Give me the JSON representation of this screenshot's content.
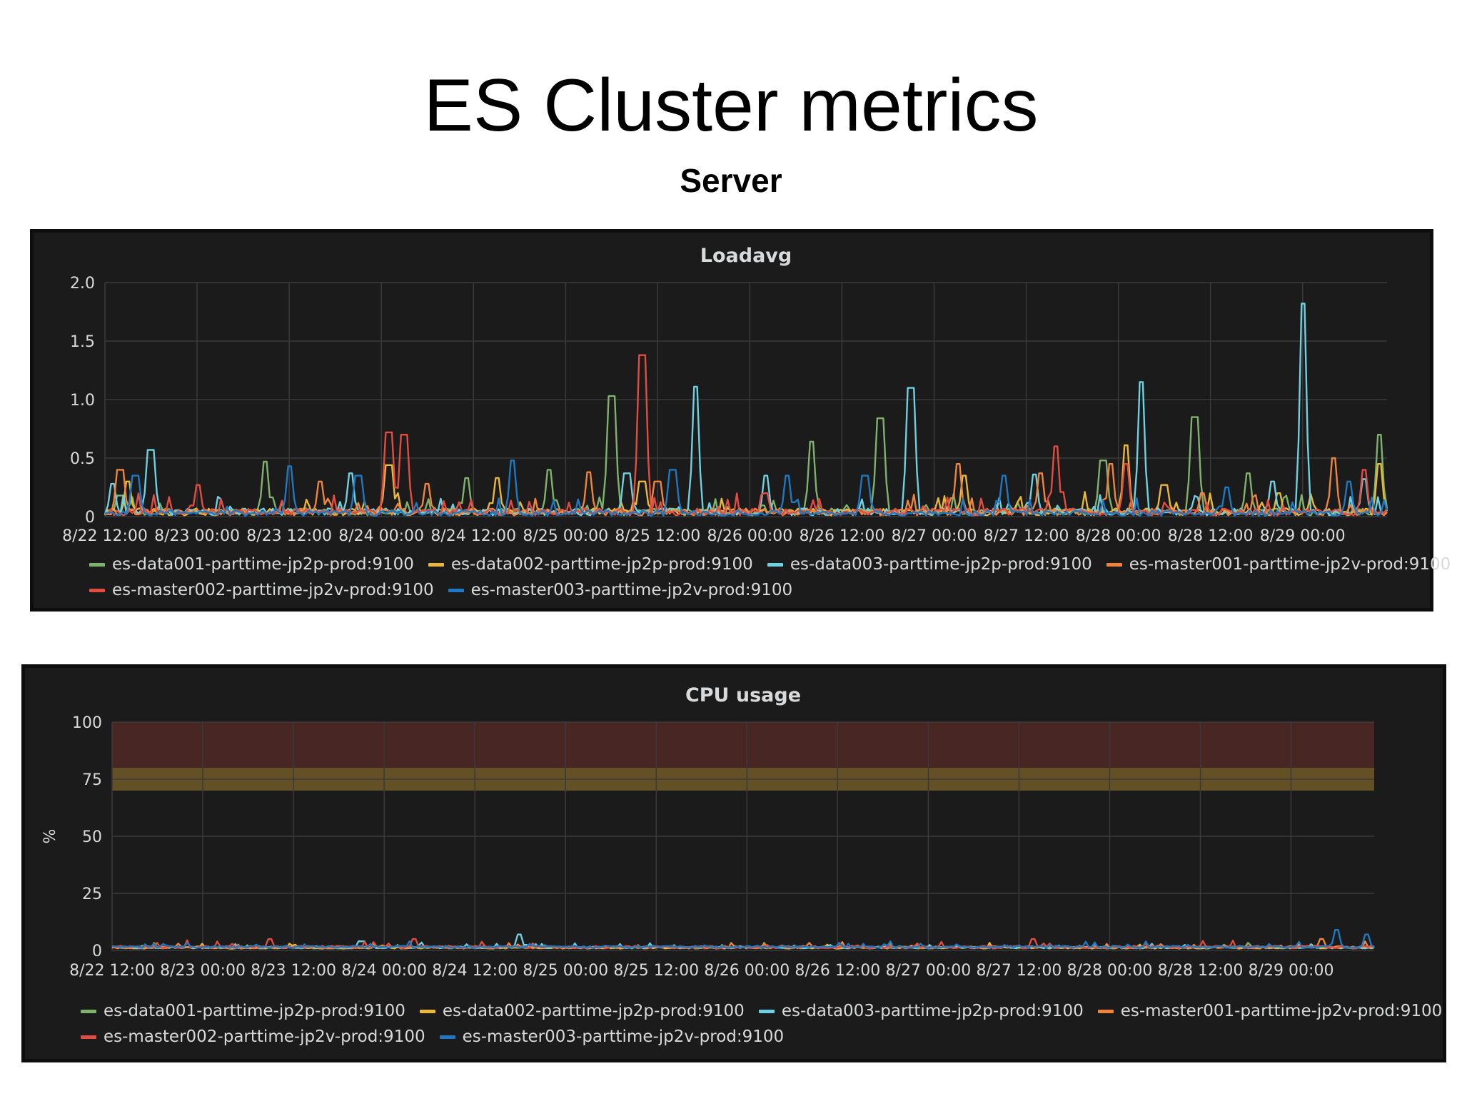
{
  "slide": {
    "title": "ES Cluster metrics",
    "subtitle": "Server"
  },
  "legend": [
    {
      "name": "es-data001-parttime-jp2p-prod:9100",
      "color": "#7eb26d"
    },
    {
      "name": "es-data002-parttime-jp2p-prod:9100",
      "color": "#eab839"
    },
    {
      "name": "es-data003-parttime-jp2p-prod:9100",
      "color": "#6ed0e0"
    },
    {
      "name": "es-master001-parttime-jp2v-prod:9100",
      "color": "#ef843c"
    },
    {
      "name": "es-master002-parttime-jp2v-prod:9100",
      "color": "#e24d42"
    },
    {
      "name": "es-master003-parttime-jp2v-prod:9100",
      "color": "#1f78c1"
    }
  ],
  "chart_data": [
    {
      "type": "line",
      "title": "Loadavg",
      "ylabel": "",
      "ylim": [
        0,
        2.0
      ],
      "yticks": [
        "0",
        "0.5",
        "1.0",
        "1.5",
        "2.0"
      ],
      "x_tick_labels": [
        "8/22 12:00",
        "8/23 00:00",
        "8/23 12:00",
        "8/24 00:00",
        "8/24 12:00",
        "8/25 00:00",
        "8/25 12:00",
        "8/26 00:00",
        "8/26 12:00",
        "8/27 00:00",
        "8/27 12:00",
        "8/28 00:00",
        "8/28 12:00",
        "8/29 00:00"
      ],
      "x_range_hours": [
        0,
        167
      ],
      "grid": true,
      "legend_position": "bottom",
      "series": [
        {
          "name": "es-data001-parttime-jp2p-prod:9100",
          "color": "#7eb26d",
          "baseline": 0.04,
          "noise": 0.06,
          "spikes": [
            [
              2,
              0.18
            ],
            [
              21,
              0.47
            ],
            [
              47,
              0.33
            ],
            [
              58,
              0.4
            ],
            [
              66,
              1.03
            ],
            [
              92,
              0.64
            ],
            [
              101,
              0.84
            ],
            [
              130,
              0.48
            ],
            [
              142,
              0.85
            ],
            [
              149,
              0.37
            ],
            [
              166,
              0.7
            ]
          ]
        },
        {
          "name": "es-data002-parttime-jp2p-prod:9100",
          "color": "#eab839",
          "baseline": 0.04,
          "noise": 0.06,
          "spikes": [
            [
              3,
              0.3
            ],
            [
              37,
              0.44
            ],
            [
              51,
              0.33
            ],
            [
              70,
              0.3
            ],
            [
              112,
              0.35
            ],
            [
              133,
              0.61
            ],
            [
              138,
              0.27
            ],
            [
              153,
              0.2
            ],
            [
              166,
              0.45
            ]
          ]
        },
        {
          "name": "es-data003-parttime-jp2p-prod:9100",
          "color": "#6ed0e0",
          "baseline": 0.04,
          "noise": 0.06,
          "spikes": [
            [
              1,
              0.28
            ],
            [
              6,
              0.57
            ],
            [
              32,
              0.37
            ],
            [
              68,
              0.37
            ],
            [
              77,
              1.11
            ],
            [
              86,
              0.35
            ],
            [
              105,
              1.1
            ],
            [
              121,
              0.36
            ],
            [
              135,
              1.15
            ],
            [
              152,
              0.3
            ],
            [
              156,
              1.82
            ],
            [
              164,
              0.32
            ]
          ]
        },
        {
          "name": "es-master001-parttime-jp2v-prod:9100",
          "color": "#ef843c",
          "baseline": 0.04,
          "noise": 0.06,
          "spikes": [
            [
              2,
              0.4
            ],
            [
              28,
              0.3
            ],
            [
              42,
              0.28
            ],
            [
              63,
              0.38
            ],
            [
              72,
              0.3
            ],
            [
              111,
              0.45
            ],
            [
              122,
              0.37
            ],
            [
              131,
              0.45
            ],
            [
              143,
              0.2
            ],
            [
              160,
              0.5
            ]
          ]
        },
        {
          "name": "es-master002-parttime-jp2v-prod:9100",
          "color": "#e24d42",
          "baseline": 0.04,
          "noise": 0.06,
          "spikes": [
            [
              12,
              0.27
            ],
            [
              37,
              0.72
            ],
            [
              39,
              0.7
            ],
            [
              70,
              1.38
            ],
            [
              86,
              0.2
            ],
            [
              124,
              0.6
            ],
            [
              133,
              0.45
            ],
            [
              164,
              0.4
            ]
          ]
        },
        {
          "name": "es-master003-parttime-jp2v-prod:9100",
          "color": "#1f78c1",
          "baseline": 0.03,
          "noise": 0.05,
          "spikes": [
            [
              4,
              0.35
            ],
            [
              24,
              0.43
            ],
            [
              33,
              0.35
            ],
            [
              53,
              0.48
            ],
            [
              74,
              0.4
            ],
            [
              89,
              0.35
            ],
            [
              99,
              0.35
            ],
            [
              117,
              0.35
            ],
            [
              146,
              0.25
            ],
            [
              162,
              0.3
            ]
          ]
        }
      ]
    },
    {
      "type": "line",
      "title": "CPU usage",
      "ylabel": "%",
      "ylim": [
        0,
        100
      ],
      "yticks": [
        "0",
        "25",
        "50",
        "75",
        "100"
      ],
      "x_tick_labels": [
        "8/22 12:00",
        "8/23 00:00",
        "8/23 12:00",
        "8/24 00:00",
        "8/24 12:00",
        "8/25 00:00",
        "8/25 12:00",
        "8/26 00:00",
        "8/26 12:00",
        "8/27 00:00",
        "8/27 12:00",
        "8/28 00:00",
        "8/28 12:00",
        "8/29 00:00"
      ],
      "x_range_hours": [
        0,
        167
      ],
      "grid": true,
      "legend_position": "bottom",
      "thresholds": [
        {
          "from": 80,
          "to": 100,
          "color": "#e24d42"
        },
        {
          "from": 70,
          "to": 80,
          "color": "#eab839"
        }
      ],
      "series": [
        {
          "name": "es-data001-parttime-jp2p-prod:9100",
          "color": "#7eb26d",
          "baseline": 1.2,
          "noise": 0.8,
          "spikes": []
        },
        {
          "name": "es-data002-parttime-jp2p-prod:9100",
          "color": "#eab839",
          "baseline": 1.2,
          "noise": 0.8,
          "spikes": []
        },
        {
          "name": "es-data003-parttime-jp2p-prod:9100",
          "color": "#6ed0e0",
          "baseline": 1.3,
          "noise": 0.8,
          "spikes": [
            [
              54,
              7
            ],
            [
              33,
              4
            ]
          ]
        },
        {
          "name": "es-master001-parttime-jp2v-prod:9100",
          "color": "#ef843c",
          "baseline": 1.4,
          "noise": 1.0,
          "spikes": [
            [
              160,
              5
            ]
          ]
        },
        {
          "name": "es-master002-parttime-jp2v-prod:9100",
          "color": "#e24d42",
          "baseline": 1.5,
          "noise": 1.2,
          "spikes": [
            [
              21,
              5
            ],
            [
              40,
              5
            ],
            [
              122,
              5
            ]
          ]
        },
        {
          "name": "es-master003-parttime-jp2v-prod:9100",
          "color": "#1f78c1",
          "baseline": 1.6,
          "noise": 1.0,
          "spikes": [
            [
              162,
              9
            ],
            [
              166,
              7
            ]
          ]
        }
      ]
    }
  ]
}
